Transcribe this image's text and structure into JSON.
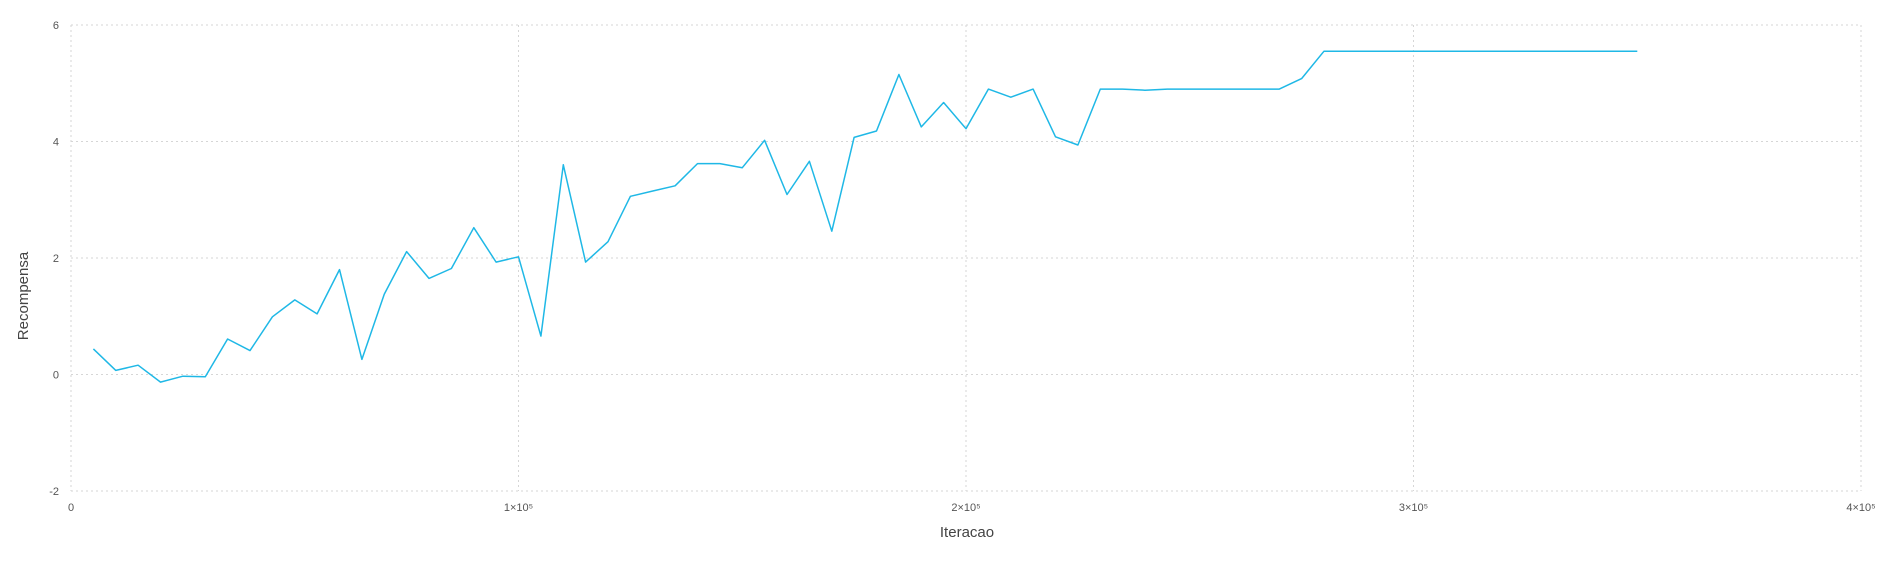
{
  "chart_data": {
    "type": "line",
    "title": "",
    "xlabel": "Iteracao",
    "ylabel": "Recompensa",
    "xlim": [
      0,
      400000
    ],
    "ylim": [
      -2,
      6
    ],
    "grid": true,
    "legend": "none",
    "x_ticks": [
      {
        "value": 0,
        "label": "0"
      },
      {
        "value": 100000,
        "label": "1×10⁵"
      },
      {
        "value": 200000,
        "label": "2×10⁵"
      },
      {
        "value": 300000,
        "label": "3×10⁵"
      },
      {
        "value": 400000,
        "label": "4×10⁵"
      }
    ],
    "y_ticks": [
      {
        "value": -2,
        "label": "-2"
      },
      {
        "value": 0,
        "label": "0"
      },
      {
        "value": 2,
        "label": "2"
      },
      {
        "value": 4,
        "label": "4"
      },
      {
        "value": 6,
        "label": "6"
      }
    ],
    "series": [
      {
        "color": "#1fb8e6",
        "x": [
          5000,
          10000,
          15000,
          20000,
          25000,
          30000,
          35000,
          40000,
          45000,
          50000,
          55000,
          60000,
          65000,
          70000,
          75000,
          80000,
          85000,
          90000,
          95000,
          100000,
          105000,
          110000,
          115000,
          120000,
          125000,
          130000,
          135000,
          140000,
          145000,
          150000,
          155000,
          160000,
          165000,
          170000,
          175000,
          180000,
          185000,
          190000,
          195000,
          200000,
          205000,
          210000,
          215000,
          220000,
          225000,
          230000,
          235000,
          240000,
          245000,
          250000,
          255000,
          260000,
          265000,
          270000,
          275000,
          280000,
          285000,
          290000,
          295000,
          300000,
          305000,
          310000,
          315000,
          320000,
          325000,
          330000,
          335000,
          340000,
          345000,
          350000
        ],
        "values": [
          0.44,
          0.07,
          0.16,
          -0.13,
          -0.03,
          -0.04,
          0.61,
          0.41,
          0.99,
          1.28,
          1.04,
          1.8,
          0.26,
          1.38,
          2.11,
          1.65,
          1.82,
          2.52,
          1.93,
          2.02,
          0.66,
          3.6,
          1.93,
          2.28,
          3.06,
          3.15,
          3.24,
          3.62,
          3.62,
          3.55,
          4.02,
          3.09,
          3.66,
          2.46,
          4.07,
          4.18,
          5.15,
          4.25,
          4.67,
          4.22,
          4.9,
          4.76,
          4.9,
          4.08,
          3.94,
          4.9,
          4.9,
          4.88,
          4.9,
          4.9,
          4.9,
          4.9,
          4.9,
          4.9,
          5.08,
          5.55,
          5.55,
          5.55,
          5.55,
          5.55,
          5.55,
          5.55,
          5.55,
          5.55,
          5.55,
          5.55,
          5.55,
          5.55,
          5.55,
          5.55
        ]
      }
    ]
  }
}
